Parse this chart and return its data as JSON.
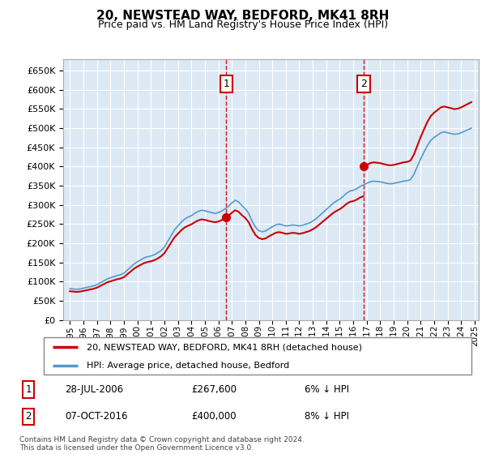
{
  "title": "20, NEWSTEAD WAY, BEDFORD, MK41 8RH",
  "subtitle": "Price paid vs. HM Land Registry's House Price Index (HPI)",
  "ylim": [
    0,
    680000
  ],
  "yticks": [
    0,
    50000,
    100000,
    150000,
    200000,
    250000,
    300000,
    350000,
    400000,
    450000,
    500000,
    550000,
    600000,
    650000
  ],
  "background_color": "#dce9f5",
  "legend_label_red": "20, NEWSTEAD WAY, BEDFORD, MK41 8RH (detached house)",
  "legend_label_blue": "HPI: Average price, detached house, Bedford",
  "annotation1_date": "28-JUL-2006",
  "annotation1_price": "£267,600",
  "annotation1_hpi": "6% ↓ HPI",
  "annotation2_date": "07-OCT-2016",
  "annotation2_price": "£400,000",
  "annotation2_hpi": "8% ↓ HPI",
  "footnote": "Contains HM Land Registry data © Crown copyright and database right 2024.\nThis data is licensed under the Open Government Licence v3.0.",
  "hpi_x": [
    1995.0,
    1995.25,
    1995.5,
    1995.75,
    1996.0,
    1996.25,
    1996.5,
    1996.75,
    1997.0,
    1997.25,
    1997.5,
    1997.75,
    1998.0,
    1998.25,
    1998.5,
    1998.75,
    1999.0,
    1999.25,
    1999.5,
    1999.75,
    2000.0,
    2000.25,
    2000.5,
    2000.75,
    2001.0,
    2001.25,
    2001.5,
    2001.75,
    2002.0,
    2002.25,
    2002.5,
    2002.75,
    2003.0,
    2003.25,
    2003.5,
    2003.75,
    2004.0,
    2004.25,
    2004.5,
    2004.75,
    2005.0,
    2005.25,
    2005.5,
    2005.75,
    2006.0,
    2006.25,
    2006.5,
    2006.75,
    2007.0,
    2007.25,
    2007.5,
    2007.75,
    2008.0,
    2008.25,
    2008.5,
    2008.75,
    2009.0,
    2009.25,
    2009.5,
    2009.75,
    2010.0,
    2010.25,
    2010.5,
    2010.75,
    2011.0,
    2011.25,
    2011.5,
    2011.75,
    2012.0,
    2012.25,
    2012.5,
    2012.75,
    2013.0,
    2013.25,
    2013.5,
    2013.75,
    2014.0,
    2014.25,
    2014.5,
    2014.75,
    2015.0,
    2015.25,
    2015.5,
    2015.75,
    2016.0,
    2016.25,
    2016.5,
    2016.75,
    2017.0,
    2017.25,
    2017.5,
    2017.75,
    2018.0,
    2018.25,
    2018.5,
    2018.75,
    2019.0,
    2019.25,
    2019.5,
    2019.75,
    2020.0,
    2020.25,
    2020.5,
    2020.75,
    2021.0,
    2021.25,
    2021.5,
    2021.75,
    2022.0,
    2022.25,
    2022.5,
    2022.75,
    2023.0,
    2023.25,
    2023.5,
    2023.75,
    2024.0,
    2024.25,
    2024.5,
    2024.75
  ],
  "hpi_y": [
    82000,
    81000,
    80000,
    81000,
    83000,
    85000,
    87000,
    89000,
    92000,
    97000,
    102000,
    107000,
    110000,
    113000,
    116000,
    118000,
    122000,
    130000,
    138000,
    146000,
    152000,
    157000,
    162000,
    165000,
    167000,
    170000,
    175000,
    181000,
    190000,
    205000,
    220000,
    235000,
    245000,
    255000,
    263000,
    268000,
    272000,
    278000,
    283000,
    286000,
    285000,
    282000,
    280000,
    278000,
    280000,
    284000,
    290000,
    296000,
    305000,
    312000,
    308000,
    298000,
    290000,
    278000,
    258000,
    242000,
    233000,
    230000,
    232000,
    238000,
    243000,
    248000,
    250000,
    248000,
    245000,
    246000,
    248000,
    247000,
    245000,
    247000,
    250000,
    253000,
    258000,
    264000,
    272000,
    280000,
    288000,
    296000,
    304000,
    310000,
    315000,
    322000,
    330000,
    336000,
    338000,
    342000,
    348000,
    352000,
    356000,
    360000,
    362000,
    361000,
    360000,
    358000,
    356000,
    355000,
    356000,
    358000,
    360000,
    362000,
    363000,
    366000,
    380000,
    400000,
    420000,
    438000,
    455000,
    468000,
    476000,
    482000,
    488000,
    490000,
    488000,
    486000,
    484000,
    485000,
    488000,
    492000,
    496000,
    500000
  ],
  "sale1_x": 2006.58,
  "sale1_y": 267600,
  "sale2_x": 2016.77,
  "sale2_y": 400000,
  "line_color_red": "#cc0000",
  "line_color_blue": "#5599cc",
  "grid_color": "#ffffff",
  "xlim_start": 1994.5,
  "xlim_end": 2025.3
}
